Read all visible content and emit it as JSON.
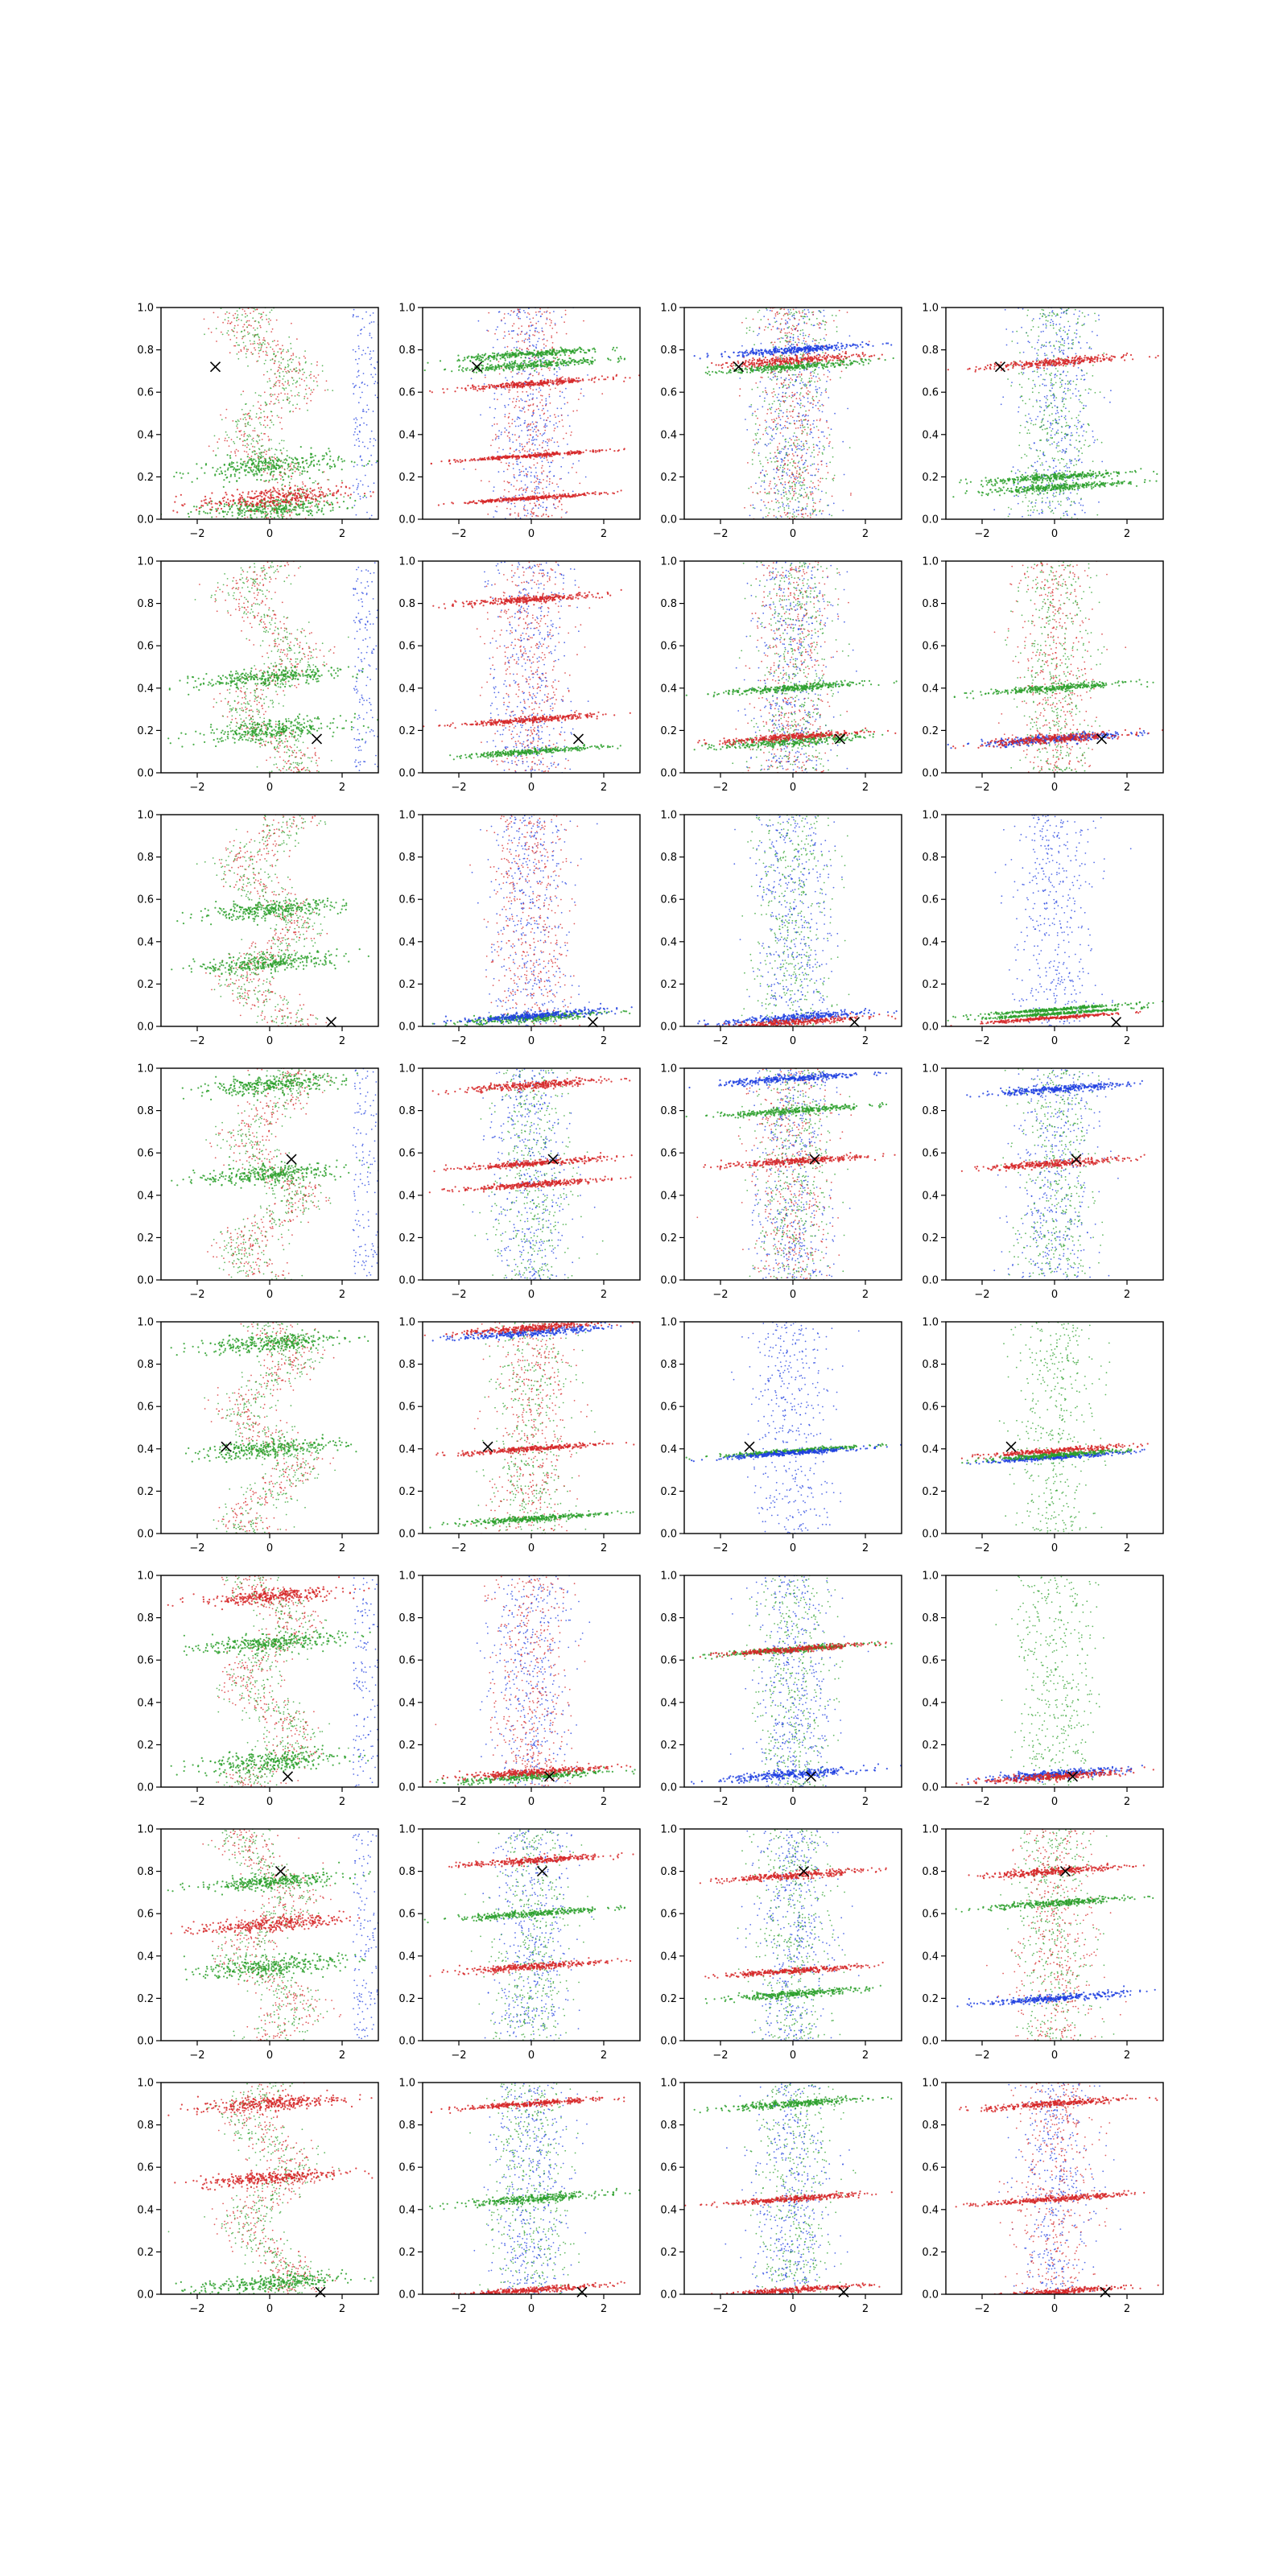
{
  "figure": {
    "rows": 8,
    "cols": 4,
    "colors": {
      "red": "#d62728",
      "green": "#2ca02c",
      "blue": "#1f3fe0",
      "marker": "#000000"
    }
  },
  "chart_data": {
    "type": "scatter",
    "description_of_layout": "8x4 grid of scatter panels",
    "xlim": [
      -3,
      3
    ],
    "ylim": [
      0,
      1
    ],
    "xticks": [
      -2,
      0,
      2
    ],
    "xtick_labels": [
      "−2",
      "0",
      "2"
    ],
    "yticks": [
      0.0,
      0.2,
      0.4,
      0.6,
      0.8,
      1.0
    ],
    "ytick_labels": [
      "0.0",
      "0.2",
      "0.4",
      "0.6",
      "0.8",
      "1.0"
    ],
    "series_colors": [
      "red",
      "green",
      "blue"
    ],
    "legend": "none",
    "grid": false,
    "markers_x_y_by_row": [
      [
        -1.5,
        0.72
      ],
      [
        1.3,
        0.16
      ],
      [
        1.7,
        0.02
      ],
      [
        0.6,
        0.57
      ],
      [
        -1.2,
        0.41
      ],
      [
        0.5,
        0.05
      ],
      [
        0.3,
        0.8
      ],
      [
        1.4,
        0.01
      ]
    ],
    "panels": [
      [
        {
          "bands": [
            [
              0.05,
              0.3,
              "green"
            ],
            [
              0.25,
              0.35,
              "green"
            ],
            [
              0.1,
              0.3,
              "red"
            ]
          ],
          "cloud": [
            "red",
            "green"
          ],
          "right_blue": true
        },
        {
          "bands": [
            [
              0.73,
              0.12,
              "green"
            ],
            [
              0.78,
              0.1,
              "green"
            ],
            [
              0.64,
              0.08,
              "red"
            ],
            [
              0.3,
              0.05,
              "red"
            ],
            [
              0.1,
              0.05,
              "red"
            ]
          ],
          "cloud": [
            "blue",
            "red"
          ],
          "right_blue": false
        },
        {
          "bands": [
            [
              0.75,
              0.12,
              "red"
            ],
            [
              0.8,
              0.1,
              "blue"
            ],
            [
              0.72,
              0.1,
              "green"
            ]
          ],
          "cloud": [
            "green",
            "blue",
            "red"
          ],
          "right_blue": false
        },
        {
          "bands": [
            [
              0.74,
              0.12,
              "red"
            ],
            [
              0.2,
              0.12,
              "green"
            ],
            [
              0.15,
              0.1,
              "green"
            ]
          ],
          "cloud": [
            "blue",
            "green"
          ],
          "right_blue": false
        }
      ],
      [
        {
          "bands": [
            [
              0.2,
              0.3,
              "green"
            ],
            [
              0.45,
              0.25,
              "green"
            ]
          ],
          "cloud": [
            "red",
            "green"
          ],
          "right_blue": true
        },
        {
          "bands": [
            [
              0.82,
              0.1,
              "red"
            ],
            [
              0.25,
              0.08,
              "red"
            ],
            [
              0.1,
              0.08,
              "green"
            ]
          ],
          "cloud": [
            "red",
            "blue"
          ],
          "right_blue": false
        },
        {
          "bands": [
            [
              0.15,
              0.15,
              "green"
            ],
            [
              0.4,
              0.1,
              "green"
            ],
            [
              0.17,
              0.1,
              "red"
            ]
          ],
          "cloud": [
            "red",
            "blue",
            "green"
          ],
          "right_blue": false
        },
        {
          "bands": [
            [
              0.16,
              0.12,
              "blue"
            ],
            [
              0.16,
              0.12,
              "red"
            ],
            [
              0.4,
              0.1,
              "green"
            ]
          ],
          "cloud": [
            "red",
            "green"
          ],
          "right_blue": false
        }
      ],
      [
        {
          "bands": [
            [
              0.55,
              0.25,
              "green"
            ],
            [
              0.3,
              0.25,
              "green"
            ]
          ],
          "cloud": [
            "red",
            "green"
          ],
          "right_blue": false
        },
        {
          "bands": [
            [
              0.04,
              0.12,
              "green"
            ],
            [
              0.05,
              0.1,
              "blue"
            ]
          ],
          "cloud": [
            "blue",
            "red"
          ],
          "right_blue": false
        },
        {
          "bands": [
            [
              0.04,
              0.12,
              "blue"
            ],
            [
              0.02,
              0.1,
              "red"
            ]
          ],
          "cloud": [
            "green",
            "blue"
          ],
          "right_blue": false
        },
        {
          "bands": [
            [
              0.06,
              0.04,
              "green"
            ],
            [
              0.04,
              0.04,
              "red"
            ],
            [
              0.08,
              0.04,
              "green"
            ]
          ],
          "cloud": [
            "blue"
          ],
          "right_blue": false
        }
      ],
      [
        {
          "bands": [
            [
              0.92,
              0.25,
              "green"
            ],
            [
              0.5,
              0.25,
              "green"
            ]
          ],
          "cloud": [
            "red",
            "green"
          ],
          "right_blue": true
        },
        {
          "bands": [
            [
              0.92,
              0.12,
              "red"
            ],
            [
              0.55,
              0.08,
              "red"
            ],
            [
              0.45,
              0.08,
              "red"
            ]
          ],
          "cloud": [
            "green",
            "blue"
          ],
          "right_blue": false
        },
        {
          "bands": [
            [
              0.56,
              0.1,
              "red"
            ],
            [
              0.8,
              0.1,
              "green"
            ],
            [
              0.95,
              0.1,
              "blue"
            ]
          ],
          "cloud": [
            "red",
            "blue",
            "green"
          ],
          "right_blue": false
        },
        {
          "bands": [
            [
              0.55,
              0.1,
              "red"
            ],
            [
              0.9,
              0.1,
              "blue"
            ]
          ],
          "cloud": [
            "blue",
            "green"
          ],
          "right_blue": false
        }
      ],
      [
        {
          "bands": [
            [
              0.4,
              0.25,
              "green"
            ],
            [
              0.9,
              0.25,
              "green"
            ]
          ],
          "cloud": [
            "red",
            "green"
          ],
          "right_blue": false
        },
        {
          "bands": [
            [
              0.95,
              0.12,
              "blue"
            ],
            [
              0.97,
              0.1,
              "red"
            ],
            [
              0.4,
              0.08,
              "red"
            ],
            [
              0.07,
              0.08,
              "green"
            ]
          ],
          "cloud": [
            "green",
            "red"
          ],
          "right_blue": false
        },
        {
          "bands": [
            [
              0.39,
              0.06,
              "green"
            ],
            [
              0.38,
              0.06,
              "blue"
            ]
          ],
          "cloud": [
            "blue"
          ],
          "right_blue": false
        },
        {
          "bands": [
            [
              0.39,
              0.08,
              "red"
            ],
            [
              0.36,
              0.06,
              "blue"
            ],
            [
              0.37,
              0.06,
              "green"
            ]
          ],
          "cloud": [
            "green"
          ],
          "right_blue": false
        }
      ],
      [
        {
          "bands": [
            [
              0.12,
              0.3,
              "green"
            ],
            [
              0.68,
              0.25,
              "green"
            ],
            [
              0.9,
              0.2,
              "red"
            ]
          ],
          "cloud": [
            "red",
            "green"
          ],
          "right_blue": true
        },
        {
          "bands": [
            [
              0.05,
              0.12,
              "green"
            ],
            [
              0.07,
              0.1,
              "red"
            ]
          ],
          "cloud": [
            "blue",
            "red"
          ],
          "right_blue": false
        },
        {
          "bands": [
            [
              0.06,
              0.12,
              "blue"
            ],
            [
              0.65,
              0.08,
              "green"
            ],
            [
              0.65,
              0.08,
              "red"
            ]
          ],
          "cloud": [
            "green",
            "blue"
          ],
          "right_blue": false
        },
        {
          "bands": [
            [
              0.06,
              0.12,
              "blue"
            ],
            [
              0.05,
              0.1,
              "red"
            ]
          ],
          "cloud": [
            "green"
          ],
          "right_blue": false
        }
      ],
      [
        {
          "bands": [
            [
              0.35,
              0.3,
              "green"
            ],
            [
              0.75,
              0.2,
              "green"
            ],
            [
              0.55,
              0.2,
              "red"
            ]
          ],
          "cloud": [
            "red",
            "green"
          ],
          "right_blue": true
        },
        {
          "bands": [
            [
              0.35,
              0.1,
              "red"
            ],
            [
              0.85,
              0.1,
              "red"
            ],
            [
              0.6,
              0.1,
              "green"
            ]
          ],
          "cloud": [
            "blue",
            "green"
          ],
          "right_blue": false
        },
        {
          "bands": [
            [
              0.78,
              0.1,
              "red"
            ],
            [
              0.33,
              0.08,
              "red"
            ],
            [
              0.22,
              0.1,
              "green"
            ]
          ],
          "cloud": [
            "blue",
            "green"
          ],
          "right_blue": false
        },
        {
          "bands": [
            [
              0.8,
              0.1,
              "red"
            ],
            [
              0.65,
              0.1,
              "green"
            ],
            [
              0.2,
              0.1,
              "blue"
            ]
          ],
          "cloud": [
            "green",
            "red"
          ],
          "right_blue": false
        }
      ],
      [
        {
          "bands": [
            [
              0.05,
              0.25,
              "green"
            ],
            [
              0.55,
              0.2,
              "red"
            ],
            [
              0.9,
              0.2,
              "red"
            ]
          ],
          "cloud": [
            "red",
            "green"
          ],
          "right_blue": false
        },
        {
          "bands": [
            [
              0.45,
              0.12,
              "green"
            ],
            [
              0.9,
              0.08,
              "red"
            ],
            [
              0.02,
              0.08,
              "red"
            ]
          ],
          "cloud": [
            "green",
            "blue"
          ],
          "right_blue": false
        },
        {
          "bands": [
            [
              0.45,
              0.08,
              "red"
            ],
            [
              0.02,
              0.08,
              "red"
            ],
            [
              0.9,
              0.1,
              "green"
            ]
          ],
          "cloud": [
            "green",
            "blue"
          ],
          "right_blue": false
        },
        {
          "bands": [
            [
              0.45,
              0.08,
              "red"
            ],
            [
              0.01,
              0.08,
              "red"
            ],
            [
              0.9,
              0.1,
              "red"
            ]
          ],
          "cloud": [
            "blue",
            "red"
          ],
          "right_blue": false
        }
      ]
    ]
  }
}
